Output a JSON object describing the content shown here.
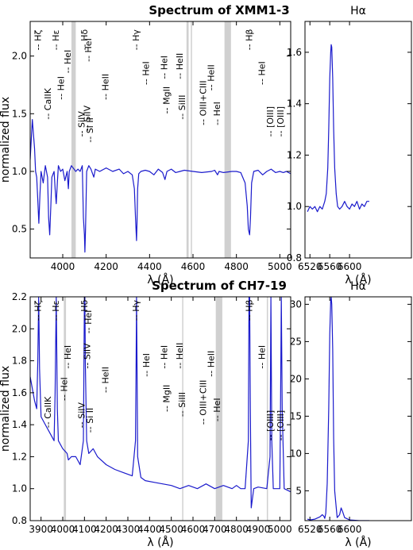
{
  "colors": {
    "spectrum": "#1a1acc",
    "masked_band": "#c8c8c8",
    "axes": "#000000"
  },
  "chart_data": [
    {
      "type": "line",
      "title": "Spectrum of XMM1-3",
      "xlabel": "λ (Å)",
      "ylabel": "normalized flux",
      "xlim": [
        3850,
        5050
      ],
      "ylim": [
        0.25,
        2.3
      ],
      "xticks": [
        4000,
        4200,
        4400,
        4600,
        4800,
        5000
      ],
      "yticks": [
        0.5,
        1.0,
        1.5,
        2.0
      ],
      "masked_bands": [
        [
          4040,
          4060
        ],
        [
          4570,
          4580
        ],
        [
          4590,
          4595
        ],
        [
          4745,
          4775
        ]
      ],
      "x": [
        3850,
        3860,
        3870,
        3875,
        3880,
        3885,
        3890,
        3895,
        3900,
        3910,
        3920,
        3930,
        3935,
        3940,
        3945,
        3950,
        3960,
        3965,
        3970,
        3975,
        3980,
        3990,
        4000,
        4010,
        4020,
        4026,
        4030,
        4040,
        4060,
        4070,
        4080,
        4090,
        4095,
        4100,
        4102,
        4105,
        4110,
        4120,
        4130,
        4143,
        4150,
        4170,
        4200,
        4230,
        4260,
        4280,
        4300,
        4320,
        4330,
        4335,
        4340,
        4342,
        4345,
        4350,
        4360,
        4380,
        4400,
        4420,
        4440,
        4460,
        4471,
        4480,
        4500,
        4520,
        4540,
        4560,
        4600,
        4640,
        4686,
        4700,
        4713,
        4720,
        4740,
        4780,
        4800,
        4820,
        4840,
        4850,
        4855,
        4861,
        4865,
        4870,
        4880,
        4900,
        4921,
        4940,
        4960,
        4980,
        5000,
        5016,
        5030,
        5050
      ],
      "y": [
        1.1,
        1.45,
        1.2,
        1.0,
        0.95,
        0.75,
        0.55,
        0.8,
        1.0,
        0.9,
        1.05,
        0.95,
        0.6,
        0.45,
        0.7,
        0.95,
        1.0,
        0.85,
        0.72,
        0.9,
        1.05,
        1.0,
        1.02,
        0.92,
        1.0,
        0.85,
        1.0,
        1.05,
        1.0,
        1.02,
        1.0,
        1.05,
        0.6,
        0.45,
        0.3,
        0.5,
        1.0,
        1.05,
        1.02,
        0.95,
        1.02,
        1.0,
        1.03,
        1.0,
        1.02,
        0.98,
        1.0,
        0.97,
        0.85,
        0.6,
        0.4,
        0.55,
        0.85,
        0.98,
        1.0,
        1.01,
        1.0,
        0.97,
        1.02,
        0.99,
        0.93,
        1.0,
        1.02,
        0.99,
        1.0,
        1.01,
        1.0,
        0.99,
        1.0,
        1.01,
        0.97,
        1.0,
        0.99,
        1.0,
        1.0,
        0.99,
        0.9,
        0.7,
        0.5,
        0.45,
        0.6,
        0.9,
        1.0,
        1.01,
        0.97,
        1.0,
        1.02,
        0.99,
        1.0,
        0.99,
        1.0,
        0.98
      ],
      "line_ids": [
        {
          "label": "-- Hζ",
          "lambda": 3889,
          "y": 2.05
        },
        {
          "label": "-- Hε",
          "lambda": 3970,
          "y": 2.05
        },
        {
          "label": "-- Hδ",
          "lambda": 4102,
          "y": 2.05
        },
        {
          "label": "-- Hγ",
          "lambda": 4340,
          "y": 2.05
        },
        {
          "label": "-- Hβ",
          "lambda": 4861,
          "y": 2.05
        },
        {
          "label": "-- HeI",
          "lambda": 4120,
          "y": 1.95
        },
        {
          "label": "-- HeI",
          "lambda": 4026,
          "y": 1.85
        },
        {
          "label": "-- HeI",
          "lambda": 3995,
          "y": 1.62
        },
        {
          "label": "-- CaIIK",
          "lambda": 3934,
          "y": 1.45
        },
        {
          "label": "-- SiIV",
          "lambda": 4089,
          "y": 1.3
        },
        {
          "label": "-- SiIV",
          "lambda": 4116,
          "y": 1.35
        },
        {
          "label": "-- Si II",
          "lambda": 4128,
          "y": 1.25
        },
        {
          "label": "-- HeII",
          "lambda": 4200,
          "y": 1.62
        },
        {
          "label": "-- HeI",
          "lambda": 4387,
          "y": 1.75
        },
        {
          "label": "-- HeI",
          "lambda": 4471,
          "y": 1.8
        },
        {
          "label": "-- MgII",
          "lambda": 4481,
          "y": 1.5
        },
        {
          "label": "-- SiIII",
          "lambda": 4553,
          "y": 1.45
        },
        {
          "label": "-- HeII",
          "lambda": 4541,
          "y": 1.8
        },
        {
          "label": "-- OIII+CIII",
          "lambda": 4650,
          "y": 1.4
        },
        {
          "label": "-- HeII",
          "lambda": 4686,
          "y": 1.7
        },
        {
          "label": "-- HeI",
          "lambda": 4713,
          "y": 1.4
        },
        {
          "label": "-- HeI",
          "lambda": 4921,
          "y": 1.75
        },
        {
          "label": "-- [OIII]",
          "lambda": 4959,
          "y": 1.3
        },
        {
          "label": "-- [OIII]",
          "lambda": 5007,
          "y": 1.3
        }
      ]
    },
    {
      "type": "line",
      "title": "Hα",
      "xlabel": "λ (Å)",
      "xlim": [
        6510,
        6725
      ],
      "ylim": [
        0.8,
        1.72
      ],
      "xticks": [
        6520,
        6560,
        6600
      ],
      "yticks": [
        0.8,
        1.0,
        1.2,
        1.4,
        1.6
      ],
      "x": [
        6515,
        6520,
        6525,
        6530,
        6535,
        6540,
        6545,
        6550,
        6553,
        6556,
        6558,
        6560,
        6562,
        6563,
        6564,
        6566,
        6568,
        6570,
        6573,
        6576,
        6580,
        6585,
        6590,
        6595,
        6600,
        6605,
        6610,
        6615,
        6620,
        6625,
        6630,
        6635,
        6640
      ],
      "y": [
        0.98,
        1.0,
        0.99,
        1.0,
        0.98,
        1.0,
        0.99,
        1.02,
        1.05,
        1.15,
        1.3,
        1.5,
        1.6,
        1.63,
        1.62,
        1.5,
        1.3,
        1.15,
        1.05,
        1.0,
        0.99,
        1.0,
        1.02,
        1.0,
        0.99,
        1.01,
        1.0,
        1.02,
        0.99,
        1.01,
        1.0,
        1.02,
        1.02
      ]
    },
    {
      "type": "line",
      "title": "Spectrum of CH7-19",
      "xlabel": "λ (Å)",
      "ylabel": "normalized flux",
      "xlim": [
        3850,
        5050
      ],
      "ylim": [
        0.8,
        2.2
      ],
      "xticks": [
        3900,
        4000,
        4100,
        4200,
        4300,
        4400,
        4500,
        4600,
        4700,
        4800,
        4900,
        5000
      ],
      "yticks": [
        0.8,
        1.0,
        1.2,
        1.4,
        1.6,
        1.8,
        2.0,
        2.2
      ],
      "masked_bands": [
        [
          4005,
          4015
        ],
        [
          4550,
          4555
        ],
        [
          4705,
          4735
        ],
        [
          4940,
          4945
        ]
      ],
      "x": [
        3850,
        3870,
        3880,
        3885,
        3889,
        3893,
        3900,
        3920,
        3940,
        3960,
        3965,
        3970,
        3975,
        3980,
        4000,
        4020,
        4026,
        4040,
        4060,
        4080,
        4095,
        4100,
        4102,
        4104,
        4110,
        4120,
        4140,
        4160,
        4200,
        4240,
        4280,
        4320,
        4335,
        4338,
        4340,
        4342,
        4345,
        4360,
        4380,
        4420,
        4460,
        4500,
        4540,
        4580,
        4620,
        4660,
        4700,
        4740,
        4780,
        4800,
        4820,
        4840,
        4855,
        4858,
        4861,
        4864,
        4868,
        4880,
        4900,
        4940,
        4955,
        4959,
        4963,
        4970,
        5000,
        5003,
        5007,
        5011,
        5020,
        5050
      ],
      "y": [
        1.7,
        1.55,
        1.5,
        1.8,
        2.2,
        1.75,
        1.45,
        1.4,
        1.35,
        1.3,
        1.6,
        2.2,
        1.5,
        1.3,
        1.25,
        1.22,
        1.18,
        1.2,
        1.2,
        1.15,
        1.3,
        2.2,
        2.2,
        1.8,
        1.3,
        1.22,
        1.25,
        1.2,
        1.15,
        1.12,
        1.1,
        1.08,
        1.3,
        1.8,
        2.2,
        1.8,
        1.2,
        1.07,
        1.05,
        1.04,
        1.03,
        1.02,
        1.0,
        1.02,
        1.0,
        1.03,
        1.0,
        1.02,
        1.0,
        1.02,
        1.0,
        1.0,
        1.3,
        2.2,
        2.2,
        1.5,
        0.88,
        1.0,
        1.01,
        1.0,
        1.2,
        2.2,
        1.3,
        1.0,
        1.0,
        1.5,
        2.2,
        1.5,
        1.0,
        0.98
      ],
      "line_ids": [
        {
          "label": "-- Hζ",
          "lambda": 3889,
          "y": 2.05
        },
        {
          "label": "-- Hε",
          "lambda": 3970,
          "y": 2.05
        },
        {
          "label": "-- Hδ",
          "lambda": 4102,
          "y": 2.05
        },
        {
          "label": "-- Hγ",
          "lambda": 4340,
          "y": 2.05
        },
        {
          "label": "-- Hβ",
          "lambda": 4861,
          "y": 2.05
        },
        {
          "label": "-- HeI",
          "lambda": 4120,
          "y": 1.97
        },
        {
          "label": "-- HeI",
          "lambda": 4026,
          "y": 1.75
        },
        {
          "label": "-- HeI",
          "lambda": 4009,
          "y": 1.55
        },
        {
          "label": "-- CaIIK",
          "lambda": 3934,
          "y": 1.38
        },
        {
          "label": "-- SiIV",
          "lambda": 4089,
          "y": 1.38
        },
        {
          "label": "-- SiIV",
          "lambda": 4116,
          "y": 1.75
        },
        {
          "label": "-- Si II",
          "lambda": 4128,
          "y": 1.35
        },
        {
          "label": "-- HeII",
          "lambda": 4200,
          "y": 1.6
        },
        {
          "label": "-- HeI",
          "lambda": 4387,
          "y": 1.7
        },
        {
          "label": "-- HeI",
          "lambda": 4471,
          "y": 1.75
        },
        {
          "label": "-- MgII",
          "lambda": 4481,
          "y": 1.48
        },
        {
          "label": "-- SiIII",
          "lambda": 4553,
          "y": 1.45
        },
        {
          "label": "-- HeII",
          "lambda": 4541,
          "y": 1.75
        },
        {
          "label": "-- OIII+CIII",
          "lambda": 4650,
          "y": 1.4
        },
        {
          "label": "-- HeII",
          "lambda": 4686,
          "y": 1.7
        },
        {
          "label": "-- HeI",
          "lambda": 4713,
          "y": 1.42
        },
        {
          "label": "-- HeI",
          "lambda": 4921,
          "y": 1.75
        },
        {
          "label": "-- [OIII]",
          "lambda": 4959,
          "y": 1.3
        },
        {
          "label": "-- [OIII]",
          "lambda": 5007,
          "y": 1.3
        }
      ]
    },
    {
      "type": "line",
      "title": "Hα",
      "xlabel": "λ (Å)",
      "xlim": [
        6510,
        6725
      ],
      "ylim": [
        1,
        31
      ],
      "xticks": [
        6520,
        6560,
        6600
      ],
      "yticks": [
        5,
        10,
        15,
        20,
        25,
        30
      ],
      "x": [
        6515,
        6520,
        6530,
        6540,
        6545,
        6548,
        6550,
        6552,
        6555,
        6558,
        6560,
        6562,
        6563,
        6564,
        6566,
        6568,
        6570,
        6575,
        6580,
        6583,
        6586,
        6590,
        6600,
        6620,
        6640
      ],
      "y": [
        1.2,
        1.1,
        1.2,
        1.5,
        1.8,
        1.6,
        1.3,
        2.0,
        6.0,
        16.0,
        26.0,
        30.5,
        31.0,
        30.0,
        24.0,
        12.0,
        5.0,
        1.4,
        1.8,
        2.7,
        2.2,
        1.4,
        1.1,
        1.0,
        1.0
      ]
    }
  ]
}
